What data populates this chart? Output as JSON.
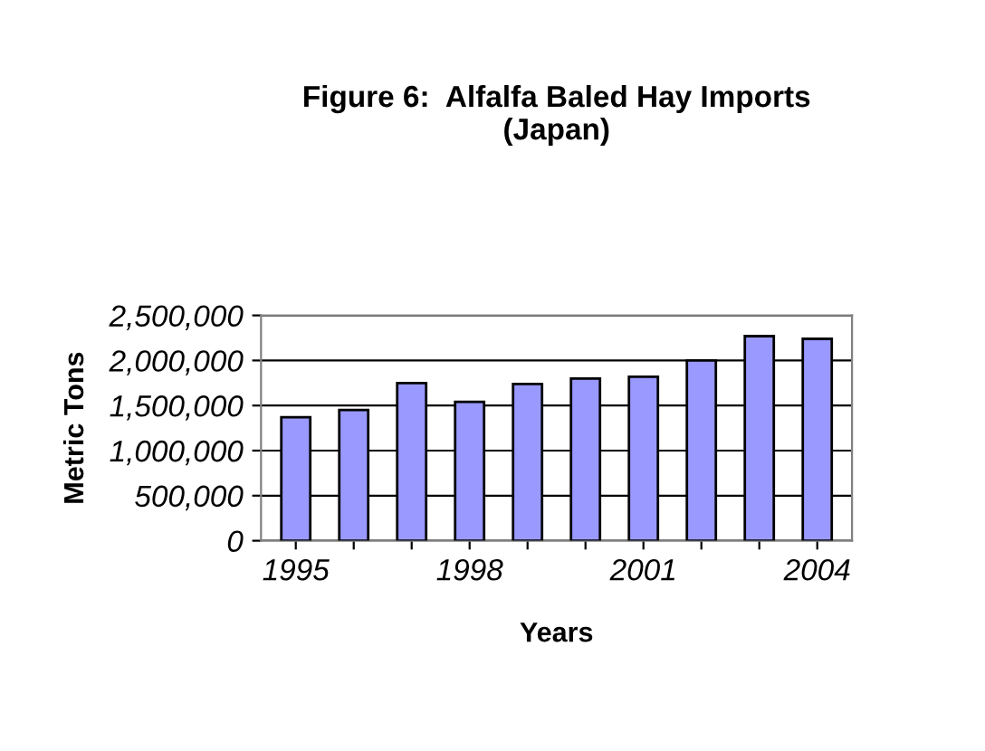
{
  "chart_data": {
    "type": "bar",
    "title": "Figure 6:  Alfalfa Baled Hay Imports\n(Japan)",
    "xlabel": "Years",
    "ylabel": "Metric Tons",
    "categories": [
      "1995",
      null,
      null,
      "1998",
      null,
      null,
      "2001",
      null,
      null,
      "2004"
    ],
    "values": [
      1370000,
      1450000,
      1750000,
      1540000,
      1740000,
      1800000,
      1820000,
      2000000,
      2270000,
      2240000
    ],
    "color": "#9999ff",
    "ylim": [
      0,
      2500000
    ],
    "yticks": [
      {
        "value": 0,
        "label": "0"
      },
      {
        "value": 500000,
        "label": "500,000"
      },
      {
        "value": 1000000,
        "label": "1,000,000"
      },
      {
        "value": 1500000,
        "label": "1,500,000"
      },
      {
        "value": 2000000,
        "label": "2,000,000"
      },
      {
        "value": 2500000,
        "label": "2,500,000"
      }
    ],
    "grid": "y"
  }
}
